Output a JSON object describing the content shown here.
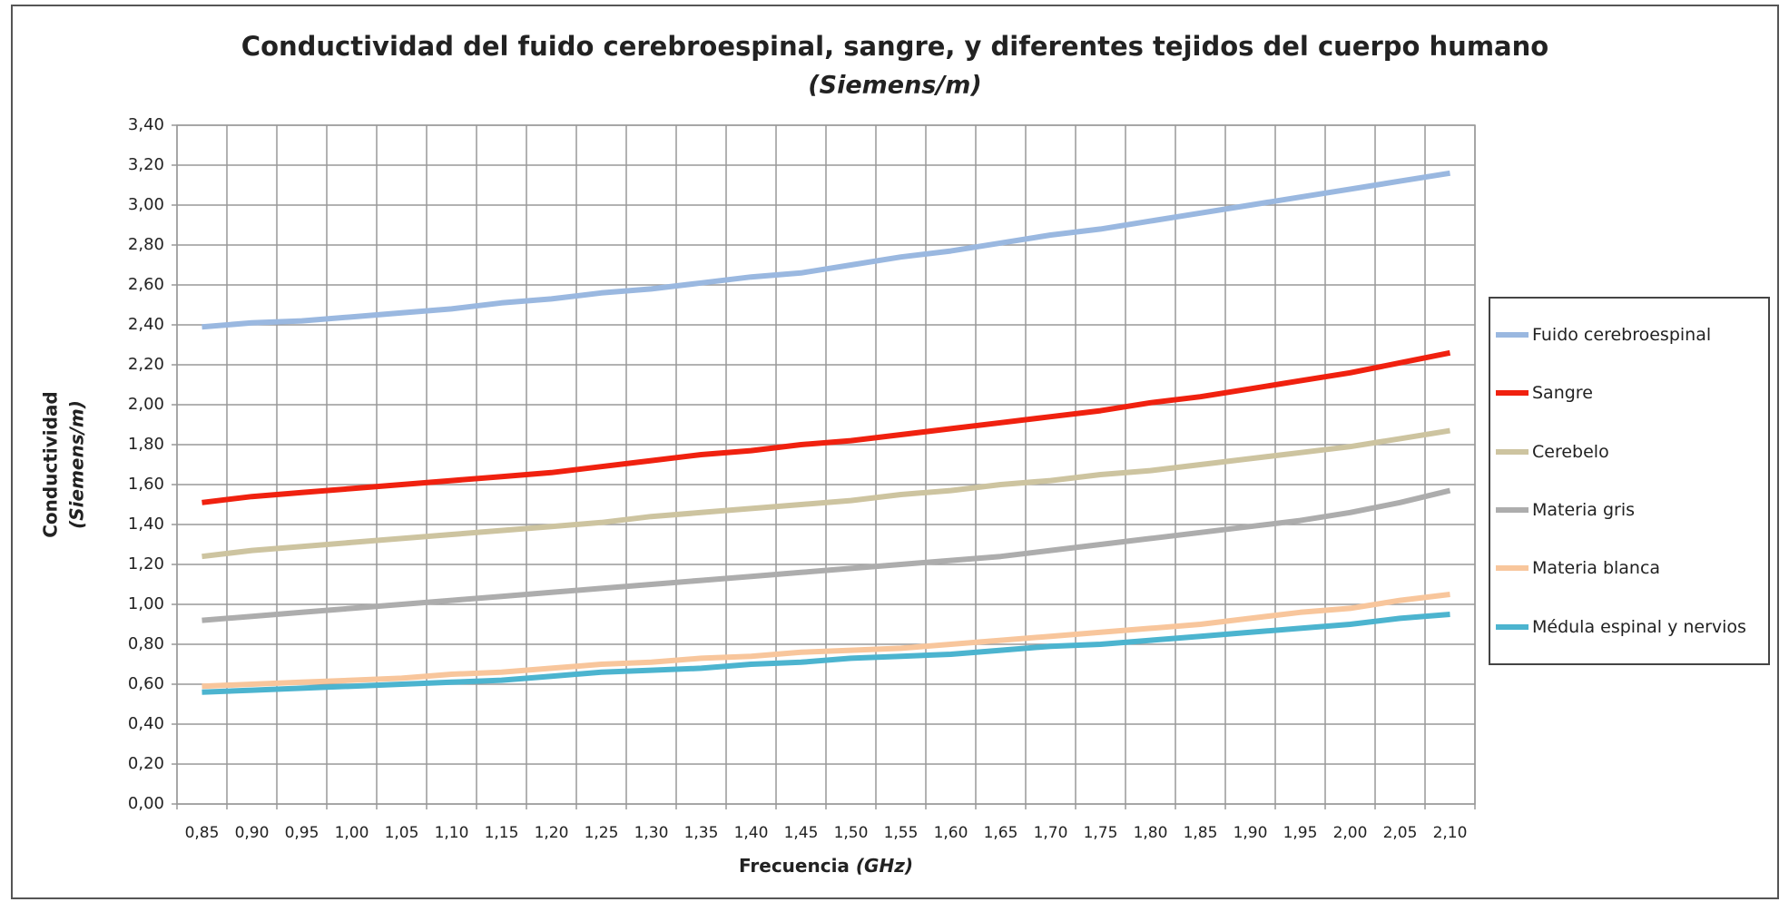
{
  "chart_data": {
    "type": "line",
    "title": "Conductividad del fuido cerebroespinal, sangre, y diferentes tejidos del cuerpo humano",
    "subtitle": "(Siemens/m)",
    "xlabel": "Frecuencia",
    "xlabel_unit": "(GHz)",
    "ylabel": "Conductividad",
    "ylabel_unit": "(Siemens/m)",
    "categories": [
      "0,85",
      "0,90",
      "0,95",
      "1,00",
      "1,05",
      "1,10",
      "1,15",
      "1,20",
      "1,25",
      "1,30",
      "1,35",
      "1,40",
      "1,45",
      "1,50",
      "1,55",
      "1,60",
      "1,65",
      "1,70",
      "1,75",
      "1,80",
      "1,85",
      "1,90",
      "1,95",
      "2,00",
      "2,05",
      "2,10"
    ],
    "ylim": [
      0,
      3.4
    ],
    "yticks": [
      {
        "value": 0,
        "label": "0,00"
      },
      {
        "value": 0.2,
        "label": "0,20"
      },
      {
        "value": 0.4,
        "label": "0,40"
      },
      {
        "value": 0.6,
        "label": "0,60"
      },
      {
        "value": 0.8,
        "label": "0,80"
      },
      {
        "value": 1,
        "label": "1,00"
      },
      {
        "value": 1.2,
        "label": "1,20"
      },
      {
        "value": 1.4,
        "label": "1,40"
      },
      {
        "value": 1.6,
        "label": "1,60"
      },
      {
        "value": 1.8,
        "label": "1,80"
      },
      {
        "value": 2,
        "label": "2,00"
      },
      {
        "value": 2.2,
        "label": "2,20"
      },
      {
        "value": 2.4,
        "label": "2,40"
      },
      {
        "value": 2.6,
        "label": "2,60"
      },
      {
        "value": 2.8,
        "label": "2,80"
      },
      {
        "value": 3,
        "label": "3,00"
      },
      {
        "value": 3.2,
        "label": "3,20"
      },
      {
        "value": 3.4,
        "label": "3,40"
      }
    ],
    "grid": true,
    "legend": "right",
    "series": [
      {
        "name": "Fuido cerebroespinal",
        "color": "#9ab8e0",
        "values": [
          2.39,
          2.41,
          2.42,
          2.44,
          2.46,
          2.48,
          2.51,
          2.53,
          2.56,
          2.58,
          2.61,
          2.64,
          2.66,
          2.7,
          2.74,
          2.77,
          2.81,
          2.85,
          2.88,
          2.92,
          2.96,
          3.0,
          3.04,
          3.08,
          3.12,
          3.16
        ]
      },
      {
        "name": "Sangre",
        "color": "#f0210f",
        "values": [
          1.51,
          1.54,
          1.56,
          1.58,
          1.6,
          1.62,
          1.64,
          1.66,
          1.69,
          1.72,
          1.75,
          1.77,
          1.8,
          1.82,
          1.85,
          1.88,
          1.91,
          1.94,
          1.97,
          2.01,
          2.04,
          2.08,
          2.12,
          2.16,
          2.21,
          2.26
        ]
      },
      {
        "name": "Cerebelo",
        "color": "#cdc4a0",
        "values": [
          1.24,
          1.27,
          1.29,
          1.31,
          1.33,
          1.35,
          1.37,
          1.39,
          1.41,
          1.44,
          1.46,
          1.48,
          1.5,
          1.52,
          1.55,
          1.57,
          1.6,
          1.62,
          1.65,
          1.67,
          1.7,
          1.73,
          1.76,
          1.79,
          1.83,
          1.87
        ]
      },
      {
        "name": "Materia gris",
        "color": "#adadad",
        "values": [
          0.92,
          0.94,
          0.96,
          0.98,
          1.0,
          1.02,
          1.04,
          1.06,
          1.08,
          1.1,
          1.12,
          1.14,
          1.16,
          1.18,
          1.2,
          1.22,
          1.24,
          1.27,
          1.3,
          1.33,
          1.36,
          1.39,
          1.42,
          1.46,
          1.51,
          1.57
        ]
      },
      {
        "name": "Materia blanca",
        "color": "#f8c69c",
        "values": [
          0.59,
          0.6,
          0.61,
          0.62,
          0.63,
          0.65,
          0.66,
          0.68,
          0.7,
          0.71,
          0.73,
          0.74,
          0.76,
          0.77,
          0.78,
          0.8,
          0.82,
          0.84,
          0.86,
          0.88,
          0.9,
          0.93,
          0.96,
          0.98,
          1.02,
          1.05
        ]
      },
      {
        "name": "Médula espinal y nervios",
        "color": "#4cb4cf",
        "values": [
          0.56,
          0.57,
          0.58,
          0.59,
          0.6,
          0.61,
          0.62,
          0.64,
          0.66,
          0.67,
          0.68,
          0.7,
          0.71,
          0.73,
          0.74,
          0.75,
          0.77,
          0.79,
          0.8,
          0.82,
          0.84,
          0.86,
          0.88,
          0.9,
          0.93,
          0.95
        ]
      }
    ]
  }
}
